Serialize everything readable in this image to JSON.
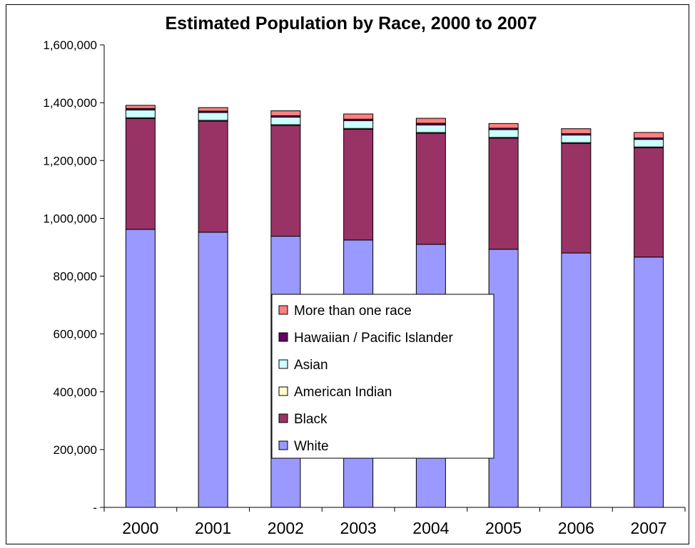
{
  "chart_data": {
    "type": "bar",
    "stacked": true,
    "title": "Estimated Population by Race, 2000 to 2007",
    "xlabel": "",
    "ylabel": "",
    "ylim": [
      0,
      1600000
    ],
    "yticks": [
      0,
      200000,
      400000,
      600000,
      800000,
      1000000,
      1200000,
      1400000,
      1600000
    ],
    "ytick_labels": [
      "-",
      "200,000",
      "400,000",
      "600,000",
      "800,000",
      "1,000,000",
      "1,200,000",
      "1,400,000",
      "1,600,000"
    ],
    "categories": [
      "2000",
      "2001",
      "2002",
      "2003",
      "2004",
      "2005",
      "2006",
      "2007"
    ],
    "grid": false,
    "legend_position": "center",
    "series": [
      {
        "name": "White",
        "color": "#9999ff",
        "values": [
          962000,
          952000,
          938000,
          925000,
          910000,
          893000,
          880000,
          866000
        ]
      },
      {
        "name": "Black",
        "color": "#993366",
        "values": [
          383000,
          384000,
          383000,
          383000,
          384000,
          384000,
          379000,
          378000
        ]
      },
      {
        "name": "American Indian",
        "color": "#ffffcc",
        "values": [
          3000,
          3000,
          3000,
          3000,
          3000,
          3000,
          3000,
          3000
        ]
      },
      {
        "name": "Asian",
        "color": "#ccffff",
        "values": [
          27000,
          27000,
          26000,
          27000,
          26000,
          27000,
          26000,
          26000
        ]
      },
      {
        "name": "Hawaiian / Pacific Islander",
        "color": "#660066",
        "values": [
          5000,
          5000,
          5000,
          5000,
          6000,
          5000,
          5000,
          5000
        ]
      },
      {
        "name": "More than one race",
        "color": "#ff8080",
        "values": [
          11000,
          12000,
          17000,
          18000,
          17000,
          16000,
          17000,
          19000
        ]
      }
    ],
    "legend_order": [
      "More than one race",
      "Hawaiian / Pacific Islander",
      "Asian",
      "American Indian",
      "Black",
      "White"
    ]
  }
}
